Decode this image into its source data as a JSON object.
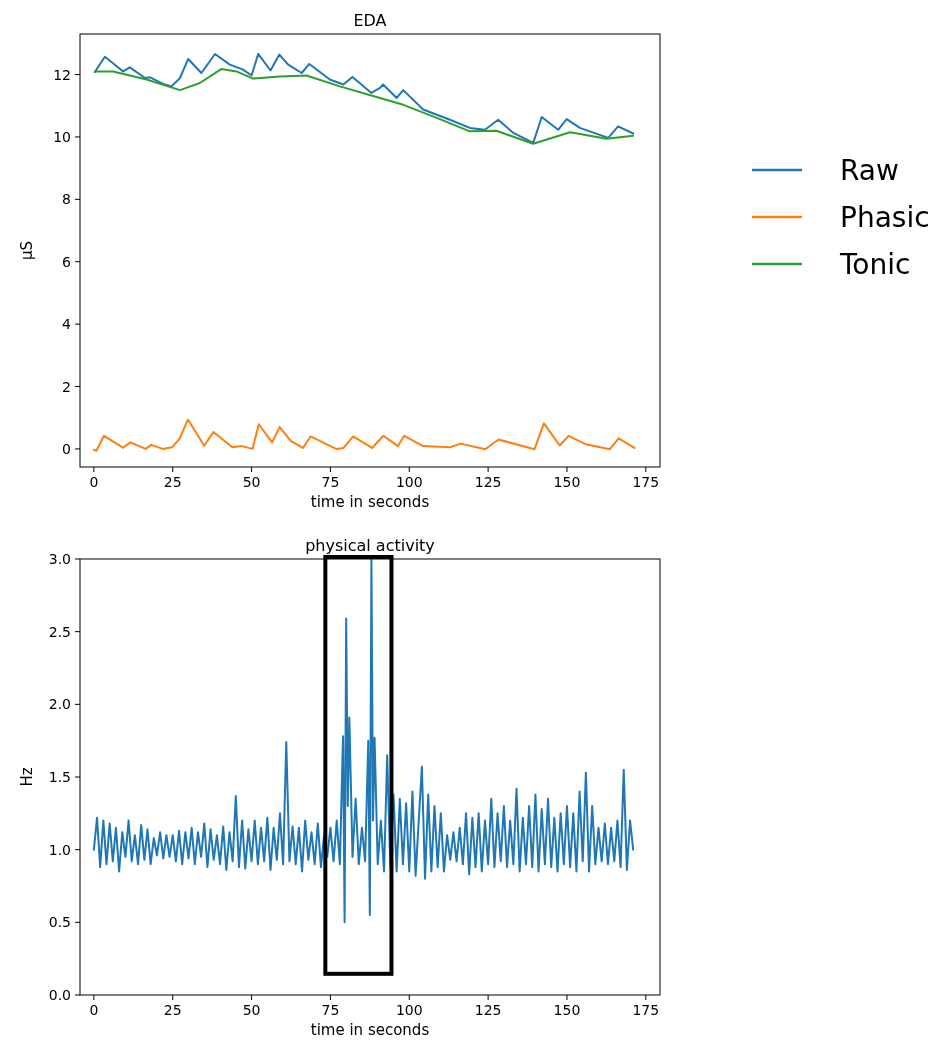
{
  "chart_data": [
    {
      "type": "line",
      "title": "EDA",
      "xlabel": "time in seconds",
      "ylabel": "µS",
      "xlim": [
        -4.4,
        179.5
      ],
      "ylim": [
        -0.58,
        13.3
      ],
      "xticks": [
        0,
        25,
        50,
        75,
        100,
        125,
        150,
        175
      ],
      "yticks": [
        0,
        2,
        4,
        6,
        8,
        10,
        12
      ],
      "legend": "right",
      "grid": false,
      "marker": "none",
      "line_style": "solid",
      "series": [
        {
          "name": "Raw",
          "color": "#1f77b4",
          "x": [
            0.3,
            3.5,
            9.3,
            11.4,
            16.2,
            17.8,
            22.5,
            24.6,
            27.3,
            29.9,
            34.1,
            38.4,
            43.1,
            47.3,
            50,
            52.1,
            56,
            58.8,
            61.6,
            65.9,
            68.3,
            74.8,
            79.1,
            82,
            88,
            90.7,
            91.7,
            96,
            98.1,
            104.4,
            112.9,
            119.2,
            124,
            128.2,
            133,
            139.3,
            142,
            147.2,
            149.9,
            154.1,
            163.1,
            166.2,
            171
          ],
          "values": [
            12.08,
            12.57,
            12.1,
            12.23,
            11.89,
            11.91,
            11.68,
            11.62,
            11.89,
            12.5,
            12.05,
            12.66,
            12.32,
            12.16,
            11.97,
            12.66,
            12.13,
            12.64,
            12.32,
            12.05,
            12.34,
            11.84,
            11.68,
            11.92,
            11.41,
            11.57,
            11.68,
            11.25,
            11.5,
            10.88,
            10.55,
            10.29,
            10.23,
            10.55,
            10.13,
            9.81,
            10.64,
            10.23,
            10.57,
            10.29,
            9.97,
            10.34,
            10.11
          ]
        },
        {
          "name": "Phasic",
          "color": "#ff7f0e",
          "x": [
            0,
            0.8,
            3.2,
            9.2,
            11.6,
            16.4,
            18.2,
            21.8,
            24.8,
            27.2,
            29.8,
            35,
            37.9,
            43.9,
            46.9,
            50.3,
            52.3,
            56.5,
            58.9,
            62.5,
            66.3,
            68.7,
            76.8,
            79.2,
            82.2,
            88.2,
            91.8,
            96.4,
            98.4,
            104.4,
            112.8,
            116.3,
            124.1,
            128.3,
            139.7,
            142.7,
            147.7,
            150.5,
            155.9,
            163.6,
            166.4,
            171.4
          ],
          "values": [
            -0.03,
            -0.06,
            0.42,
            0.04,
            0.21,
            0,
            0.13,
            0,
            0.05,
            0.33,
            0.94,
            0.1,
            0.54,
            0.05,
            0.09,
            0,
            0.79,
            0.21,
            0.7,
            0.25,
            0.03,
            0.4,
            0,
            0.03,
            0.4,
            0.03,
            0.42,
            0.09,
            0.42,
            0.09,
            0.05,
            0.17,
            -0.01,
            0.3,
            -0.01,
            0.82,
            0.11,
            0.42,
            0.15,
            -0.01,
            0.34,
            0.03
          ]
        },
        {
          "name": "Tonic",
          "color": "#2ca02c",
          "x": [
            0.3,
            6.1,
            16.7,
            27.3,
            33.6,
            40.5,
            45.2,
            50.5,
            59,
            67.4,
            78,
            90.7,
            98.1,
            108.7,
            119.2,
            127.6,
            139.3,
            151,
            162.6,
            171
          ],
          "values": [
            12.1,
            12.1,
            11.84,
            11.5,
            11.73,
            12.18,
            12.1,
            11.87,
            11.94,
            11.97,
            11.62,
            11.25,
            11.03,
            10.61,
            10.18,
            10.2,
            9.78,
            10.15,
            9.94,
            10.04
          ]
        }
      ]
    },
    {
      "type": "line",
      "title": "physical activity",
      "xlabel": "time in seconds",
      "ylabel": "Hz",
      "xlim": [
        -4.4,
        179.5
      ],
      "ylim": [
        0,
        3
      ],
      "xticks": [
        0,
        25,
        50,
        75,
        100,
        125,
        150,
        175
      ],
      "yticks": [
        {
          "value": 0,
          "label": "0.0"
        },
        {
          "value": 0.5,
          "label": "0.5"
        },
        {
          "value": 1,
          "label": "1.0"
        },
        {
          "value": 1.5,
          "label": "1.5"
        },
        {
          "value": 2,
          "label": "2.0"
        },
        {
          "value": 2.5,
          "label": "2.5"
        },
        {
          "value": 3,
          "label": "3.0"
        }
      ],
      "grid": false,
      "marker": "none",
      "line_style": "solid",
      "series": [
        {
          "color": "#1f77b4",
          "x": [
            0,
            1,
            2,
            3,
            4,
            5,
            6,
            7,
            8,
            9,
            10,
            11,
            12,
            13,
            14,
            15,
            16,
            17,
            18,
            19,
            20,
            21,
            22,
            23,
            24,
            25,
            26,
            27,
            28,
            29,
            30,
            31,
            32,
            33,
            34,
            35,
            36,
            37,
            38,
            39,
            40,
            41,
            42,
            43,
            44,
            45,
            46,
            47,
            48,
            49,
            50,
            51,
            52,
            53,
            54,
            55,
            56,
            57,
            58,
            59,
            60,
            61,
            62,
            63,
            64,
            65,
            66,
            67,
            68,
            69,
            70,
            71,
            72,
            73,
            74,
            75,
            76,
            77,
            78,
            79,
            79.5,
            80,
            80.5,
            81,
            82,
            83,
            84,
            85,
            86,
            87,
            87.5,
            88,
            88.5,
            89,
            90,
            91,
            92,
            93,
            94,
            95,
            96,
            97,
            98,
            99,
            100,
            101,
            102,
            103,
            104,
            105,
            106,
            107,
            108,
            109,
            110,
            111,
            112,
            113,
            114,
            115,
            116,
            117,
            118,
            119,
            120,
            121,
            122,
            123,
            124,
            125,
            126,
            127,
            128,
            129,
            130,
            131,
            132,
            133,
            134,
            135,
            136,
            137,
            138,
            139,
            140,
            141,
            142,
            143,
            144,
            145,
            146,
            147,
            148,
            149,
            150,
            151,
            152,
            153,
            154,
            155,
            156,
            157,
            158,
            159,
            160,
            161,
            162,
            163,
            164,
            165,
            166,
            167,
            168,
            169,
            170,
            171
          ],
          "values": [
            1.0,
            1.22,
            0.88,
            1.2,
            0.9,
            1.18,
            0.92,
            1.15,
            0.85,
            1.12,
            0.95,
            1.2,
            0.92,
            1.1,
            0.9,
            1.17,
            0.93,
            1.14,
            0.9,
            1.08,
            0.96,
            1.12,
            0.94,
            1.1,
            0.95,
            1.1,
            0.92,
            1.13,
            0.9,
            1.12,
            0.94,
            1.15,
            0.9,
            1.12,
            0.95,
            1.18,
            0.88,
            1.14,
            0.93,
            1.1,
            0.9,
            1.16,
            0.86,
            1.12,
            0.92,
            1.37,
            0.88,
            1.2,
            0.87,
            1.14,
            0.92,
            1.2,
            0.9,
            1.15,
            0.92,
            1.22,
            0.86,
            1.15,
            0.93,
            1.25,
            0.9,
            1.74,
            0.92,
            1.16,
            0.9,
            1.15,
            0.85,
            1.2,
            0.93,
            1.12,
            0.9,
            1.18,
            0.88,
            1.1,
            0.95,
            1.15,
            0.92,
            1.2,
            0.9,
            1.78,
            0.5,
            2.59,
            1.3,
            1.91,
            0.95,
            1.35,
            0.9,
            1.15,
            0.92,
            1.75,
            0.55,
            3.0,
            1.2,
            1.77,
            0.9,
            1.2,
            0.85,
            1.65,
            0.88,
            1.38,
            0.85,
            1.35,
            0.9,
            1.32,
            0.85,
            1.4,
            0.82,
            1.2,
            1.57,
            0.8,
            1.38,
            0.85,
            1.3,
            0.88,
            1.25,
            0.85,
            1.1,
            0.93,
            1.12,
            0.92,
            1.15,
            0.9,
            1.25,
            0.83,
            1.22,
            0.88,
            1.25,
            0.85,
            1.2,
            0.9,
            1.35,
            0.88,
            1.25,
            0.92,
            1.3,
            0.88,
            1.2,
            0.9,
            1.42,
            0.85,
            1.22,
            0.9,
            1.3,
            0.88,
            1.38,
            0.85,
            1.28,
            0.9,
            1.35,
            0.88,
            1.22,
            0.85,
            1.25,
            0.9,
            1.3,
            0.88,
            1.25,
            0.85,
            1.4,
            0.92,
            1.53,
            0.85,
            1.3,
            0.9,
            1.15,
            0.92,
            1.18,
            0.9,
            1.15,
            0.92,
            1.2,
            0.88,
            1.55,
            0.86,
            1.2,
            1.0
          ]
        }
      ]
    }
  ]
}
